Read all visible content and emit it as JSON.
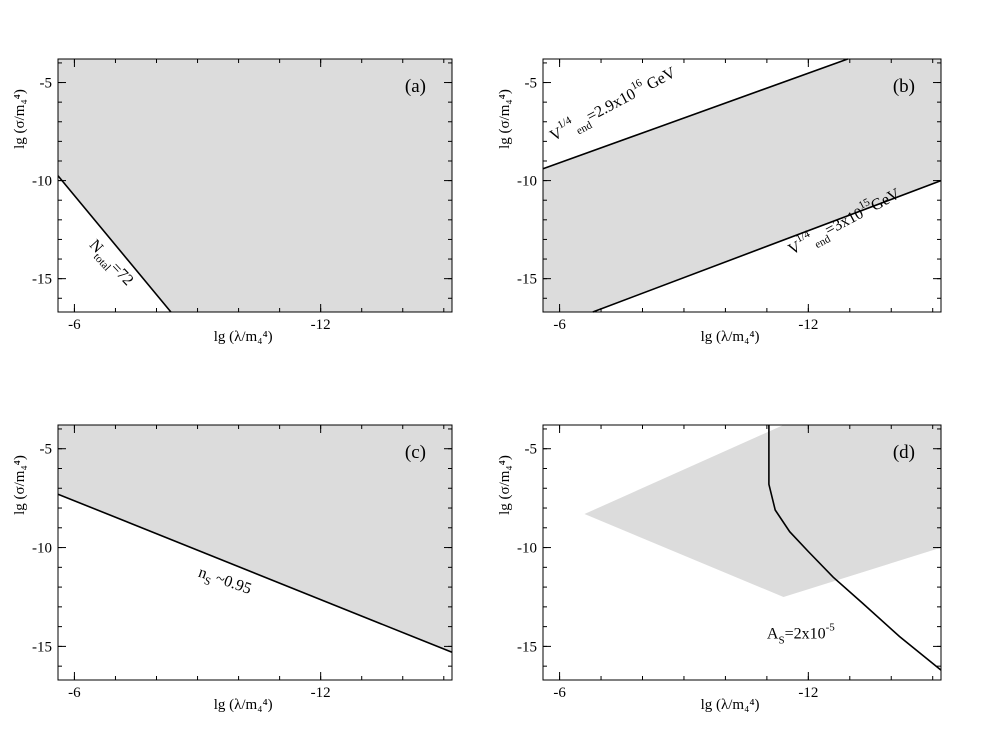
{
  "colors": {
    "shade": "#dcdcdc",
    "line": "#000000",
    "frame": "#000000"
  },
  "chart_data": [
    {
      "type": "area",
      "panel": "(a)",
      "xlabel": "lg (λ/m₄⁴)",
      "ylabel": "lg (σ/m₄⁴)",
      "xlim": [
        -5.6,
        -15.2
      ],
      "ylim": [
        -16.7,
        -3.8
      ],
      "xticks": [
        -6,
        -12
      ],
      "yticks": [
        -5,
        -10,
        -15
      ],
      "x_tick_labels": [
        "-6",
        "-12"
      ],
      "y_tick_labels": [
        "-5",
        "-10",
        "-15"
      ],
      "region": [
        [
          -5.6,
          -3.8
        ],
        [
          -15.2,
          -3.8
        ],
        [
          -15.2,
          -16.7
        ],
        [
          -8.35,
          -16.7
        ],
        [
          -5.6,
          -9.75
        ]
      ],
      "curves": [
        {
          "name": "N_total=72",
          "points": [
            [
              -5.6,
              -9.75
            ],
            [
              -8.35,
              -16.7
            ]
          ]
        }
      ],
      "annotations": [
        {
          "main": "N",
          "sub": "total",
          "rest": "=72",
          "x": -6.35,
          "y": -13.3,
          "angle": 47
        }
      ]
    },
    {
      "type": "area",
      "panel": "(b)",
      "xlabel": "lg (λ/m₄⁴)",
      "ylabel": "lg (σ/m₄⁴)",
      "xlim": [
        -5.6,
        -15.2
      ],
      "ylim": [
        -16.7,
        -3.8
      ],
      "xticks": [
        -6,
        -12
      ],
      "yticks": [
        -5,
        -10,
        -15
      ],
      "x_tick_labels": [
        "-6",
        "-12"
      ],
      "y_tick_labels": [
        "-5",
        "-10",
        "-15"
      ],
      "region": [
        [
          -5.6,
          -9.4
        ],
        [
          -12.95,
          -3.8
        ],
        [
          -15.2,
          -3.8
        ],
        [
          -15.2,
          -10.0
        ],
        [
          -6.8,
          -16.7
        ],
        [
          -5.6,
          -16.7
        ]
      ],
      "curves": [
        {
          "name": "V_end^1/4=2.9x10^16 GeV",
          "points": [
            [
              -5.6,
              -9.4
            ],
            [
              -12.95,
              -3.8
            ]
          ]
        },
        {
          "name": "V_end^1/4=3x10^15 GeV",
          "points": [
            [
              -6.8,
              -16.7
            ],
            [
              -15.2,
              -10.0
            ]
          ]
        }
      ],
      "annotations": [
        {
          "main": "V",
          "sup": "1/4",
          "sub": "end",
          "rest": "=2.9x10",
          "sup2": "16",
          "tail": " GeV",
          "x": -5.85,
          "y": -8.0,
          "angle": -28
        },
        {
          "main": "V",
          "sup": "1/4",
          "sub": "end",
          "rest": "=3x10",
          "sup2": "15",
          "tail": "GeV",
          "x": -11.6,
          "y": -13.8,
          "angle": -28
        }
      ]
    },
    {
      "type": "area",
      "panel": "(c)",
      "xlabel": "lg (λ/m₄⁴)",
      "ylabel": "lg (σ/m₄⁴)",
      "xlim": [
        -5.6,
        -15.2
      ],
      "ylim": [
        -16.7,
        -3.8
      ],
      "xticks": [
        -6,
        -12
      ],
      "yticks": [
        -5,
        -10,
        -15
      ],
      "x_tick_labels": [
        "-6",
        "-12"
      ],
      "y_tick_labels": [
        "-5",
        "-10",
        "-15"
      ],
      "region": [
        [
          -5.6,
          -3.8
        ],
        [
          -15.2,
          -3.8
        ],
        [
          -15.2,
          -15.3
        ],
        [
          -5.6,
          -7.3
        ]
      ],
      "curves": [
        {
          "name": "n_s ~0.95",
          "points": [
            [
              -5.6,
              -7.3
            ],
            [
              -15.2,
              -15.3
            ]
          ]
        }
      ],
      "annotations": [
        {
          "main": "n",
          "sub": "S",
          "rest": " ~0.95",
          "x": -9.0,
          "y": -11.45,
          "angle": 19
        }
      ]
    },
    {
      "type": "area",
      "panel": "(d)",
      "xlabel": "lg (λ/m₄⁴)",
      "ylabel": "lg (σ/m₄⁴)",
      "xlim": [
        -5.6,
        -15.2
      ],
      "ylim": [
        -16.7,
        -3.8
      ],
      "xticks": [
        -6,
        -12
      ],
      "yticks": [
        -5,
        -10,
        -15
      ],
      "x_tick_labels": [
        "-6",
        "-12"
      ],
      "y_tick_labels": [
        "-5",
        "-10",
        "-15"
      ],
      "region": [
        [
          -6.6,
          -8.3
        ],
        [
          -11.4,
          -3.8
        ],
        [
          -15.2,
          -3.8
        ],
        [
          -15.2,
          -10.0
        ],
        [
          -11.4,
          -12.5
        ]
      ],
      "curves": [
        {
          "name": "A_s=2x10^-5",
          "points": [
            [
              -11.05,
              -3.8
            ],
            [
              -11.05,
              -6.8
            ],
            [
              -11.2,
              -8.1
            ],
            [
              -11.55,
              -9.2
            ],
            [
              -12.0,
              -10.2
            ],
            [
              -12.6,
              -11.5
            ],
            [
              -13.3,
              -12.8
            ],
            [
              -14.2,
              -14.5
            ],
            [
              -15.2,
              -16.2
            ]
          ]
        }
      ],
      "annotations": [
        {
          "main": "A",
          "sub": "S",
          "rest": "=2x10",
          "sup2": "-5",
          "x": -11.0,
          "y": -14.6,
          "angle": 0
        }
      ]
    }
  ]
}
